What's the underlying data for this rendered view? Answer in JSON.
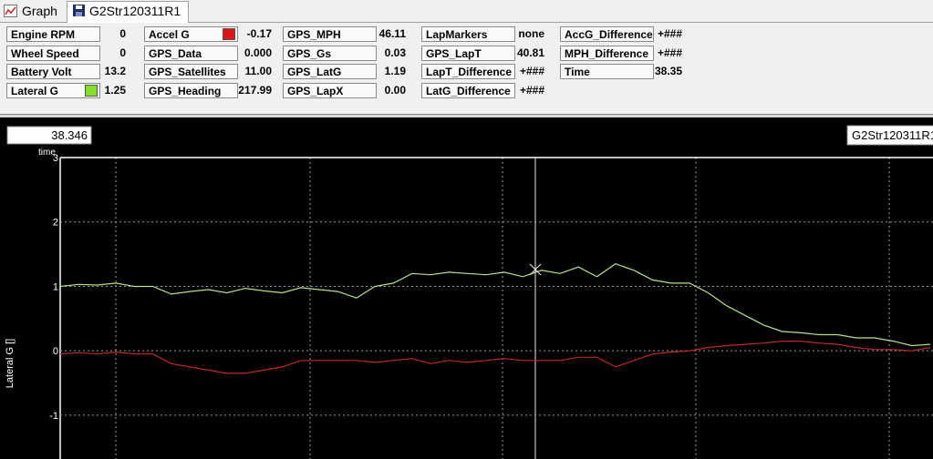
{
  "tabs": [
    "Graph",
    "G2Str120311R1"
  ],
  "channels": [
    [
      {
        "label": "Engine RPM",
        "value": "0"
      },
      {
        "label": "Wheel Speed",
        "value": "0"
      },
      {
        "label": "Battery Volt",
        "value": "13.2"
      },
      {
        "label": "Lateral G",
        "value": "1.25",
        "color": "#84e02a"
      }
    ],
    [
      {
        "label": "Accel G",
        "value": "-0.17",
        "color": "#e01414"
      },
      {
        "label": "GPS_Data",
        "value": "0.000"
      },
      {
        "label": "GPS_Satellites",
        "value": "11.00"
      },
      {
        "label": "GPS_Heading",
        "value": "217.99"
      }
    ],
    [
      {
        "label": "GPS_MPH",
        "value": "46.11"
      },
      {
        "label": "GPS_Gs",
        "value": "0.03"
      },
      {
        "label": "GPS_LatG",
        "value": "1.19"
      },
      {
        "label": "GPS_LapX",
        "value": "0.00"
      }
    ],
    [
      {
        "label": "LapMarkers",
        "value": "none"
      },
      {
        "label": "GPS_LapT",
        "value": "40.81"
      },
      {
        "label": "LapT_Difference",
        "value": "+###"
      },
      {
        "label": "LatG_Difference",
        "value": "+###"
      }
    ],
    [
      {
        "label": "AccG_Difference",
        "value": "+###"
      },
      {
        "label": "MPH_Difference",
        "value": "+###"
      },
      {
        "label": "Time",
        "value": "38.35"
      }
    ]
  ],
  "cursor_value": "38.346",
  "cursor_axis": "time",
  "run_label": "G2Str120311R1",
  "chart_data": {
    "type": "line",
    "y_label": "Lateral G []",
    "ylim": [
      -1.68,
      3
    ],
    "yticks": [
      3,
      2,
      1,
      0,
      -1
    ],
    "grid": true,
    "series": [
      {
        "color": "#b8e08a",
        "values": [
          1.0,
          1.03,
          1.02,
          1.05,
          1.0,
          1.0,
          0.88,
          0.92,
          0.95,
          0.9,
          0.97,
          0.93,
          0.9,
          0.98,
          0.95,
          0.92,
          0.82,
          1.0,
          1.05,
          1.2,
          1.18,
          1.22,
          1.2,
          1.18,
          1.22,
          1.15,
          1.25,
          1.2,
          1.3,
          1.15,
          1.35,
          1.25,
          1.1,
          1.05,
          1.05,
          0.9,
          0.7,
          0.55,
          0.4,
          0.3,
          0.28,
          0.25,
          0.25,
          0.2,
          0.2,
          0.15,
          0.08,
          0.1
        ]
      },
      {
        "color": "#c0282a",
        "values": [
          -0.05,
          -0.03,
          -0.05,
          -0.02,
          -0.05,
          -0.05,
          -0.2,
          -0.25,
          -0.3,
          -0.35,
          -0.35,
          -0.3,
          -0.25,
          -0.15,
          -0.15,
          -0.15,
          -0.15,
          -0.18,
          -0.15,
          -0.12,
          -0.2,
          -0.15,
          -0.18,
          -0.15,
          -0.12,
          -0.15,
          -0.15,
          -0.15,
          -0.1,
          -0.1,
          -0.25,
          -0.15,
          -0.05,
          -0.02,
          0.0,
          0.05,
          0.08,
          0.1,
          0.12,
          0.15,
          0.15,
          0.12,
          0.1,
          0.05,
          0.02,
          0.02,
          0.0,
          0.05
        ]
      }
    ]
  }
}
